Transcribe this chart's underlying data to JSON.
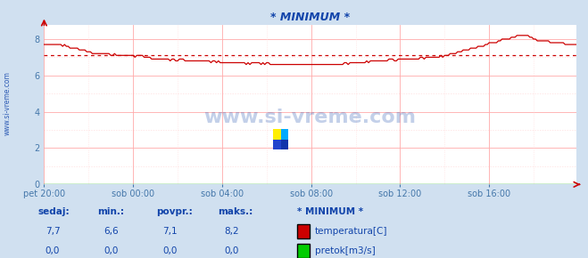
{
  "title": "* MINIMUM *",
  "bg_color": "#d0e0f0",
  "plot_bg_color": "#ffffff",
  "grid_color_major": "#ffaaaa",
  "grid_color_minor": "#ffdddd",
  "ylabel_color": "#4477aa",
  "xlabel_color": "#4477aa",
  "title_color": "#1144aa",
  "watermark_text": "www.si-vreme.com",
  "watermark_color": "#1144aa",
  "left_label": "www.si-vreme.com",
  "x_labels": [
    "pet 20:00",
    "sob 00:00",
    "sob 04:00",
    "sob 08:00",
    "sob 12:00",
    "sob 16:00"
  ],
  "y_ticks": [
    0,
    2,
    4,
    6,
    8
  ],
  "ylim": [
    0,
    8.8
  ],
  "avg_line_value": 7.1,
  "avg_line_color": "#cc0000",
  "temp_line_color": "#cc0000",
  "flow_line_color": "#00aa00",
  "legend_title": "* MINIMUM *",
  "legend_labels": [
    "temperatura[C]",
    "pretok[m3/s]"
  ],
  "legend_colors": [
    "#cc0000",
    "#00cc00"
  ],
  "table_headers": [
    "sedaj:",
    "min.:",
    "povpr.:",
    "maks.:"
  ],
  "table_values_temp": [
    "7,7",
    "6,6",
    "7,1",
    "8,2"
  ],
  "table_values_flow": [
    "0,0",
    "0,0",
    "0,0",
    "0,0"
  ],
  "table_color": "#1144aa",
  "n_points": 288,
  "x_tick_positions": [
    0,
    48,
    96,
    144,
    192,
    240
  ]
}
